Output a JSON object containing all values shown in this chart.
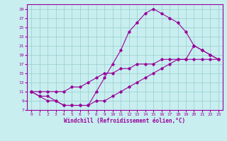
{
  "xlabel": "Windchill (Refroidissement éolien,°C)",
  "bg_color": "#c8eef0",
  "line_color": "#990099",
  "grid_color": "#99cccc",
  "xlim": [
    -0.5,
    23.5
  ],
  "ylim": [
    7,
    30
  ],
  "yticks": [
    7,
    9,
    11,
    13,
    15,
    17,
    19,
    21,
    23,
    25,
    27,
    29
  ],
  "xticks": [
    0,
    1,
    2,
    3,
    4,
    5,
    6,
    7,
    8,
    9,
    10,
    11,
    12,
    13,
    14,
    15,
    16,
    17,
    18,
    19,
    20,
    21,
    22,
    23
  ],
  "line1_x": [
    0,
    1,
    2,
    3,
    4,
    5,
    6,
    7,
    8,
    9,
    10,
    11,
    12,
    13,
    14,
    15,
    16,
    17,
    18,
    19,
    20,
    21,
    22,
    23
  ],
  "line1_y": [
    11,
    10,
    10,
    9,
    8,
    8,
    8,
    8,
    11,
    14,
    17,
    20,
    24,
    26,
    28,
    29,
    28,
    27,
    26,
    24,
    21,
    20,
    19,
    18
  ],
  "line2_x": [
    0,
    1,
    2,
    3,
    4,
    5,
    6,
    7,
    8,
    9,
    10,
    11,
    12,
    13,
    14,
    15,
    16,
    17,
    18,
    19,
    20,
    21,
    22,
    23
  ],
  "line2_y": [
    11,
    11,
    11,
    11,
    11,
    12,
    12,
    13,
    14,
    15,
    15,
    16,
    16,
    17,
    17,
    17,
    18,
    18,
    18,
    18,
    18,
    18,
    18,
    18
  ],
  "line3_x": [
    0,
    1,
    2,
    3,
    4,
    5,
    6,
    7,
    8,
    9,
    10,
    11,
    12,
    13,
    14,
    15,
    16,
    17,
    18,
    19,
    20,
    21,
    22,
    23
  ],
  "line3_y": [
    11,
    10,
    9,
    9,
    8,
    8,
    8,
    8,
    9,
    9,
    10,
    11,
    12,
    13,
    14,
    15,
    16,
    17,
    18,
    18,
    21,
    20,
    19,
    18
  ]
}
